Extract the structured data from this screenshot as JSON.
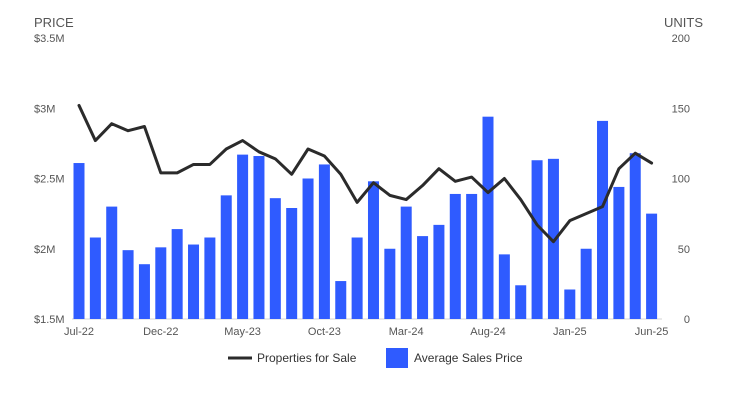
{
  "chart_data": {
    "type": "bar",
    "y_left_title": "PRICE",
    "y_right_title": "UNITS",
    "y_left_ticks": [
      "$3.5M",
      "$3M",
      "$2.5M",
      "$2M",
      "$1.5M"
    ],
    "y_left_tick_values": [
      3500000,
      3000000,
      2500000,
      2000000,
      1500000
    ],
    "y_left_range": [
      1500000,
      3500000
    ],
    "y_right_ticks": [
      "200",
      "150",
      "100",
      "50",
      "0"
    ],
    "y_right_tick_values": [
      200,
      150,
      100,
      50,
      0
    ],
    "y_right_range": [
      0,
      200
    ],
    "x_tick_labels": [
      "Jul-22",
      "Dec-22",
      "May-23",
      "Oct-23",
      "Mar-24",
      "Aug-24",
      "Jan-25",
      "Jun-25"
    ],
    "x_tick_indices": [
      0,
      5,
      10,
      15,
      20,
      25,
      30,
      35
    ],
    "months": [
      "Jul-22",
      "Aug-22",
      "Sep-22",
      "Oct-22",
      "Nov-22",
      "Dec-22",
      "Jan-23",
      "Feb-23",
      "Mar-23",
      "Apr-23",
      "May-23",
      "Jun-23",
      "Jul-23",
      "Aug-23",
      "Sep-23",
      "Oct-23",
      "Nov-23",
      "Dec-23",
      "Jan-24",
      "Feb-24",
      "Mar-24",
      "Apr-24",
      "May-24",
      "Jun-24",
      "Jul-24",
      "Aug-24",
      "Sep-24",
      "Oct-24",
      "Nov-24",
      "Dec-24",
      "Jan-25",
      "Feb-25",
      "Mar-25",
      "Apr-25",
      "May-25",
      "Jun-25"
    ],
    "series": [
      {
        "name": "Average Sales Price",
        "type": "bar",
        "axis": "left",
        "color": "#2f5bff",
        "values": [
          2610000,
          2080000,
          2300000,
          1990000,
          1890000,
          2010000,
          2140000,
          2030000,
          2080000,
          2380000,
          2670000,
          2660000,
          2360000,
          2290000,
          2500000,
          2600000,
          1770000,
          2080000,
          2480000,
          2000000,
          2300000,
          2090000,
          2170000,
          2390000,
          2390000,
          2940000,
          1960000,
          1740000,
          2630000,
          2640000,
          1710000,
          2000000,
          2910000,
          2440000,
          2680000,
          2250000
        ]
      },
      {
        "name": "Properties for Sale",
        "type": "line",
        "axis": "right",
        "color": "#2b2b2b",
        "values": [
          152,
          127,
          139,
          134,
          137,
          104,
          104,
          110,
          110,
          121,
          127,
          119,
          114,
          103,
          121,
          116,
          103,
          83,
          97,
          88,
          85,
          95,
          107,
          98,
          101,
          90,
          100,
          85,
          67,
          55,
          70,
          75,
          80,
          107,
          118,
          111
        ]
      }
    ],
    "legend": {
      "position": "bottom-center",
      "items": [
        {
          "label": "Properties for Sale",
          "marker": "line",
          "color": "#2b2b2b"
        },
        {
          "label": "Average Sales Price",
          "marker": "square",
          "color": "#2f5bff"
        }
      ]
    },
    "grid": false
  }
}
